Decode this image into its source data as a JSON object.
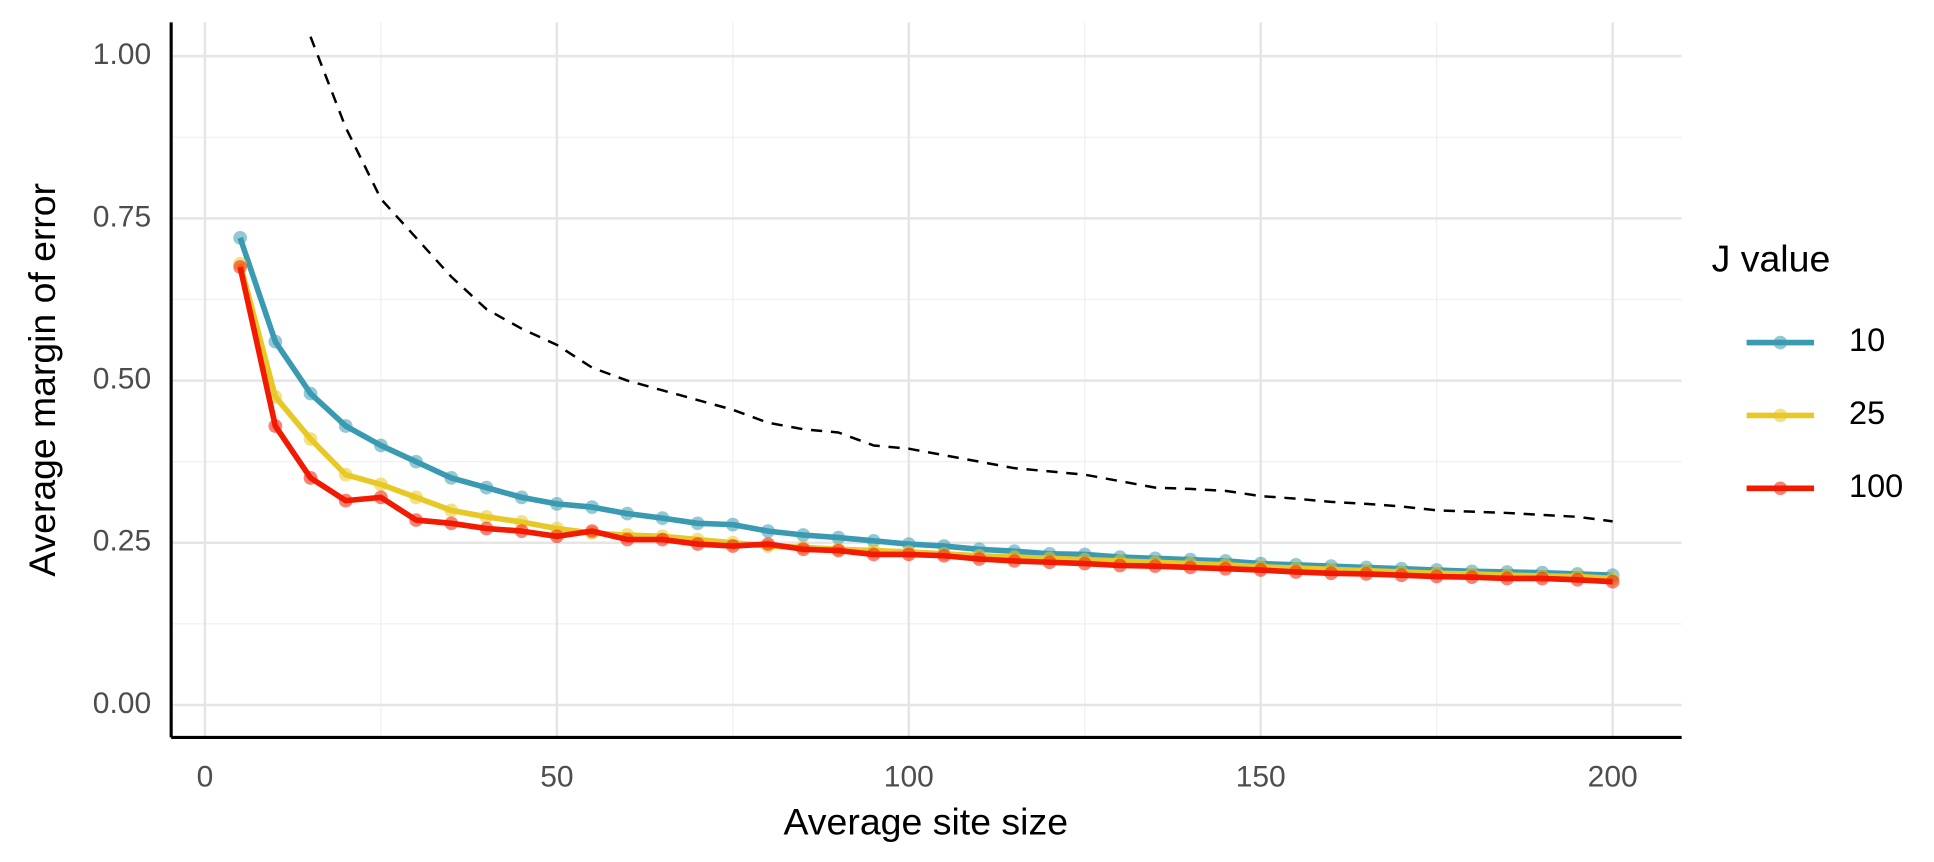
{
  "chart_data": {
    "type": "line",
    "x_label": "Average site size",
    "y_label": "Average margin of error",
    "legend_title": "J value",
    "legend_position": "right",
    "grid": true,
    "x": [
      5,
      10,
      15,
      20,
      25,
      30,
      35,
      40,
      45,
      50,
      55,
      60,
      65,
      70,
      75,
      80,
      85,
      90,
      95,
      100,
      105,
      110,
      115,
      120,
      125,
      130,
      135,
      140,
      145,
      150,
      155,
      160,
      165,
      170,
      175,
      180,
      185,
      190,
      195,
      200
    ],
    "series": [
      {
        "name": "10",
        "color": "#3a9ab2",
        "markers": true,
        "values": [
          0.72,
          0.56,
          0.48,
          0.43,
          0.4,
          0.375,
          0.35,
          0.335,
          0.32,
          0.31,
          0.305,
          0.295,
          0.288,
          0.28,
          0.278,
          0.268,
          0.262,
          0.258,
          0.253,
          0.248,
          0.245,
          0.24,
          0.237,
          0.233,
          0.232,
          0.228,
          0.226,
          0.224,
          0.222,
          0.218,
          0.216,
          0.214,
          0.212,
          0.21,
          0.208,
          0.206,
          0.205,
          0.204,
          0.202,
          0.2
        ]
      },
      {
        "name": "25",
        "color": "#e8c825",
        "markers": true,
        "values": [
          0.68,
          0.475,
          0.41,
          0.355,
          0.34,
          0.32,
          0.3,
          0.29,
          0.282,
          0.272,
          0.265,
          0.262,
          0.26,
          0.255,
          0.25,
          0.245,
          0.243,
          0.24,
          0.238,
          0.236,
          0.233,
          0.23,
          0.228,
          0.226,
          0.224,
          0.222,
          0.22,
          0.218,
          0.216,
          0.213,
          0.211,
          0.209,
          0.207,
          0.205,
          0.203,
          0.202,
          0.2,
          0.199,
          0.198,
          0.195
        ]
      },
      {
        "name": "100",
        "color": "#f21a00",
        "markers": true,
        "values": [
          0.675,
          0.43,
          0.35,
          0.315,
          0.32,
          0.285,
          0.28,
          0.272,
          0.268,
          0.26,
          0.268,
          0.255,
          0.255,
          0.248,
          0.245,
          0.248,
          0.24,
          0.238,
          0.232,
          0.232,
          0.23,
          0.225,
          0.222,
          0.22,
          0.218,
          0.215,
          0.214,
          0.212,
          0.21,
          0.208,
          0.205,
          0.203,
          0.202,
          0.2,
          0.198,
          0.197,
          0.195,
          0.195,
          0.193,
          0.19
        ]
      },
      {
        "color": "#000000",
        "dashed": true,
        "markers": false,
        "values": [
          null,
          null,
          1.03,
          0.89,
          0.78,
          0.72,
          0.66,
          0.61,
          0.58,
          0.555,
          0.52,
          0.5,
          0.485,
          0.47,
          0.455,
          0.435,
          0.425,
          0.42,
          0.4,
          0.395,
          0.385,
          0.375,
          0.365,
          0.36,
          0.355,
          0.345,
          0.335,
          0.333,
          0.33,
          0.322,
          0.318,
          0.313,
          0.31,
          0.306,
          0.3,
          0.298,
          0.296,
          0.293,
          0.29,
          0.283
        ]
      }
    ],
    "xlim": [
      -4.8,
      209.8
    ],
    "ylim": [
      -0.05,
      1.052
    ],
    "xticks": [
      0,
      50,
      100,
      150,
      200
    ],
    "yticks": [
      {
        "value": 0,
        "label": "0.00"
      },
      {
        "value": 0.25,
        "label": "0.25"
      },
      {
        "value": 0.5,
        "label": "0.50"
      },
      {
        "value": 0.75,
        "label": "0.75"
      },
      {
        "value": 1,
        "label": "1.00"
      }
    ]
  }
}
